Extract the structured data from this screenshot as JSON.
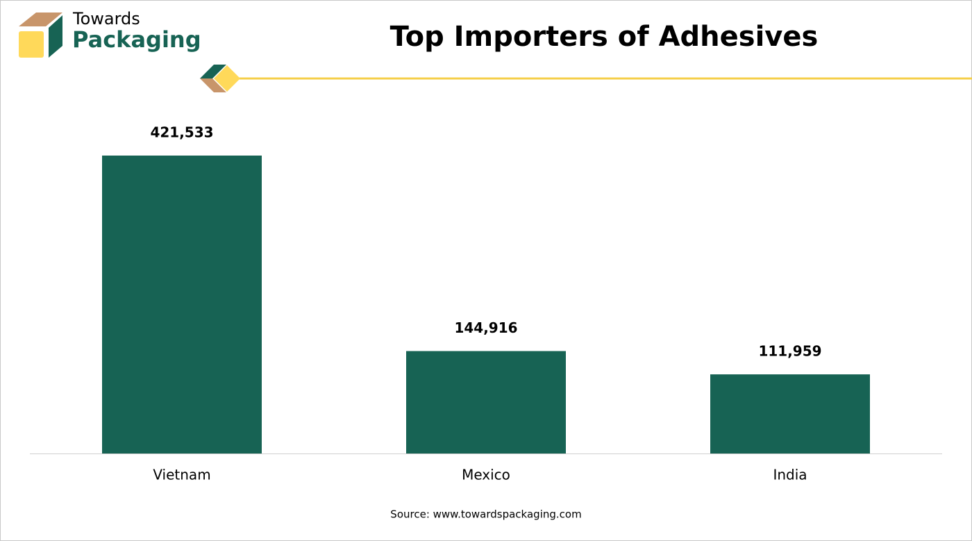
{
  "logo": {
    "line1": "Towards",
    "line2": "Packaging"
  },
  "chart_data": {
    "type": "bar",
    "title": "Top Importers of Adhesives",
    "categories": [
      "Vietnam",
      "Mexico",
      "India"
    ],
    "values": [
      421533,
      144916,
      111959
    ],
    "value_labels": [
      "421,533",
      "144,916",
      "111,959"
    ],
    "color": "#176354",
    "source": "Source: www.towardspackaging.com"
  }
}
